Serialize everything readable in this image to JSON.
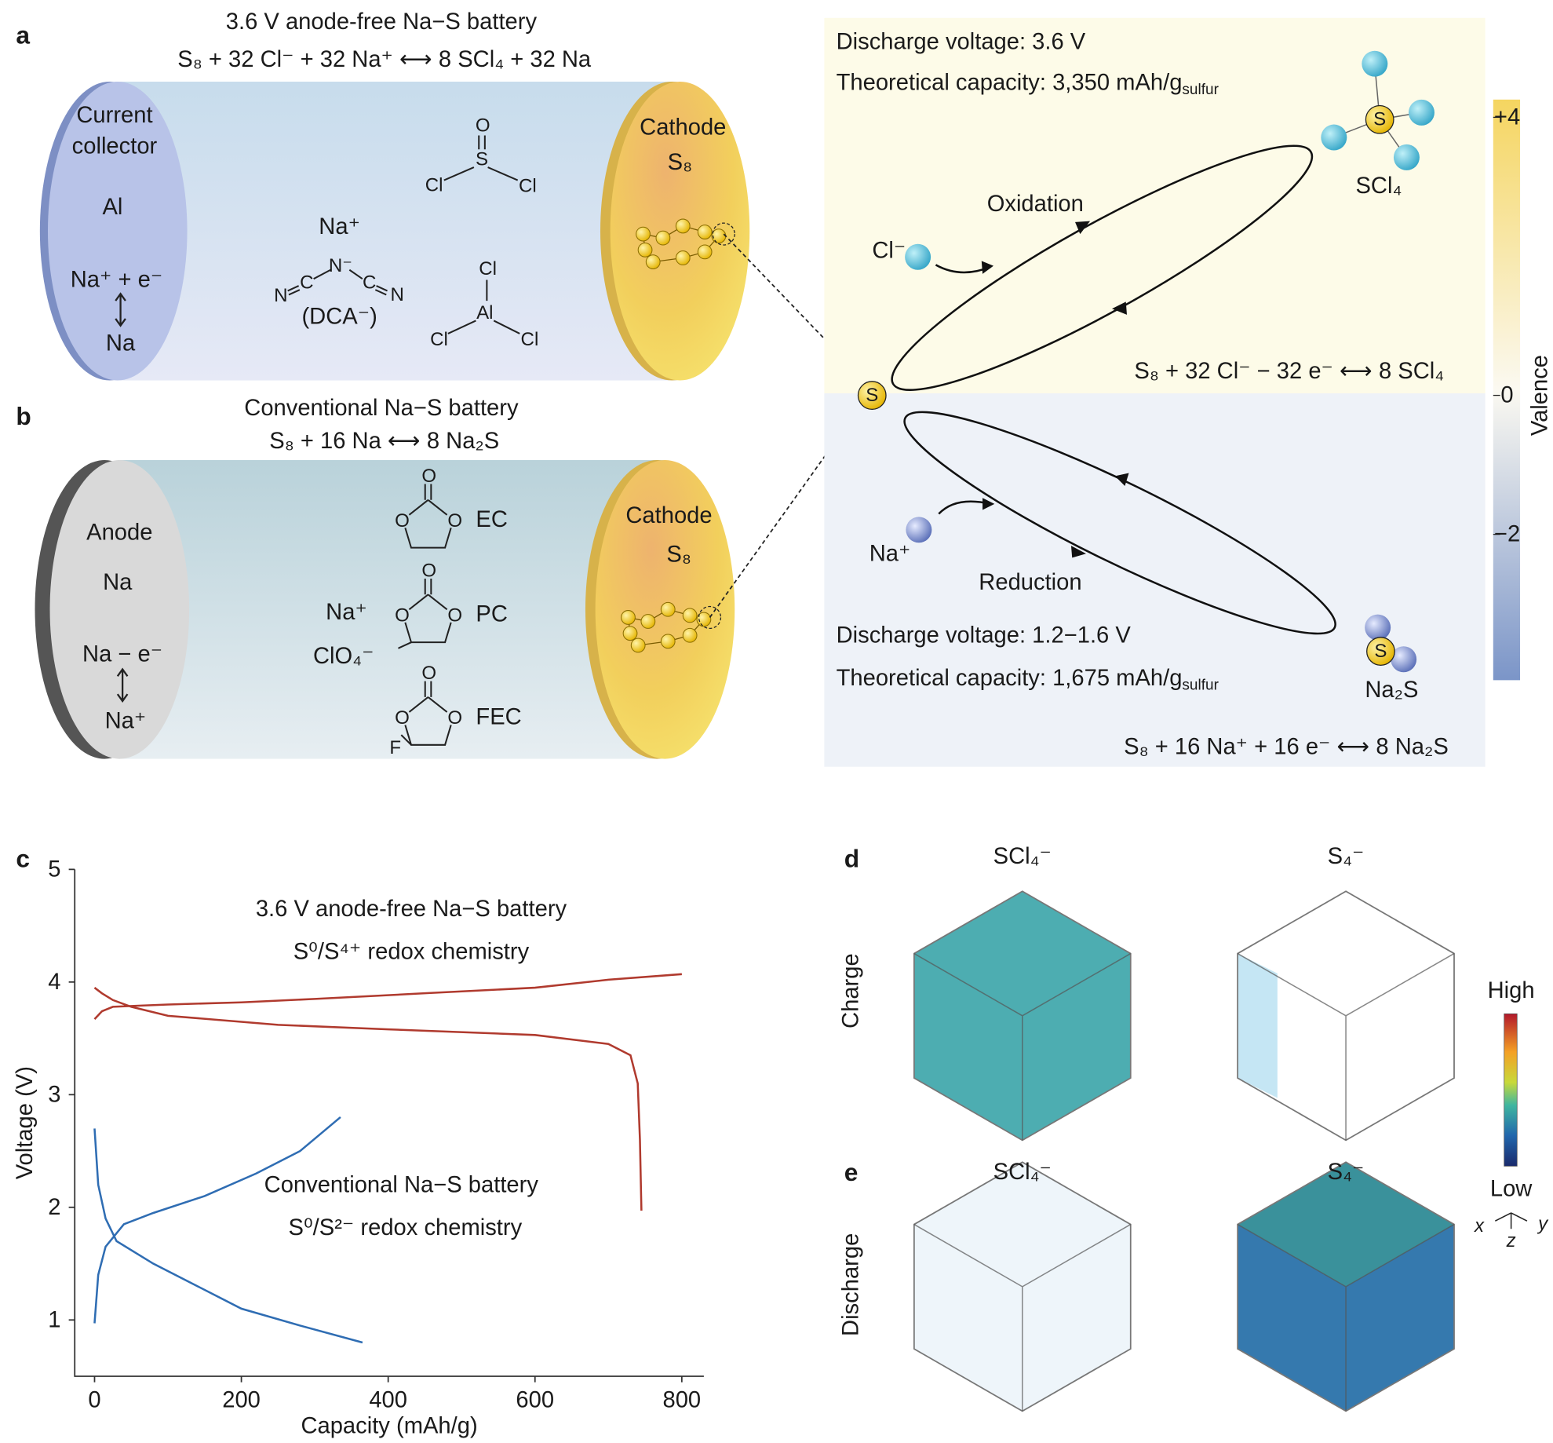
{
  "panel_labels": {
    "a": "a",
    "b": "b",
    "c": "c",
    "d": "d",
    "e": "e"
  },
  "panel_a": {
    "title": "3.6 V anode-free Na−S battery",
    "equation": "S₈ + 32 Cl⁻ + 32 Na⁺ ⟷ 8 SCl₄ + 32 Na",
    "collector": [
      "Current",
      "collector"
    ],
    "collector_material": "Al",
    "anode_reaction_top": "Na⁺ + e⁻",
    "anode_reaction_bottom": "Na",
    "cathode": "Cathode",
    "cathode_material": "S₈",
    "salt_cation": "Na⁺",
    "salt_anion": "(DCA⁻)",
    "socl2_atoms": [
      "O",
      "S",
      "Cl",
      "Cl"
    ],
    "dca_atoms": [
      "N",
      "C",
      "N⁻",
      "C",
      "N"
    ],
    "alcl3_atoms": [
      "Cl",
      "Al",
      "Cl",
      "Cl"
    ]
  },
  "panel_b": {
    "title": "Conventional Na−S battery",
    "equation": "S₈ + 16 Na ⟷ 8 Na₂S",
    "anode": "Anode",
    "anode_material": "Na",
    "anode_reaction_top": "Na − e⁻",
    "anode_reaction_bottom": "Na⁺",
    "cathode": "Cathode",
    "cathode_material": "S₈",
    "salt_cation": "Na⁺",
    "salt_anion": "ClO₄⁻",
    "solvents": [
      {
        "name": "EC",
        "atoms": [
          "O",
          "O",
          "O"
        ]
      },
      {
        "name": "PC",
        "atoms": [
          "O",
          "O",
          "O"
        ]
      },
      {
        "name": "FEC",
        "atoms": [
          "O",
          "O",
          "O",
          "F"
        ]
      }
    ]
  },
  "mechanism": {
    "oxidation": {
      "voltage": "Discharge voltage: 3.6 V",
      "capacity": "Theoretical capacity: 3,350 mAh/g",
      "capacity_sub": "sulfur",
      "product": "SCl₄",
      "product_atom": "S",
      "label": "Oxidation",
      "ion": "Cl⁻",
      "equation": "S₈ + 32 Cl⁻ − 32 e⁻ ⟷ 8 SCl₄"
    },
    "center": "S",
    "reduction": {
      "voltage": "Discharge voltage: 1.2−1.6 V",
      "capacity": "Theoretical capacity: 1,675 mAh/g",
      "capacity_sub": "sulfur",
      "product": "Na₂S",
      "product_atom": "S",
      "label": "Reduction",
      "ion": "Na⁺",
      "equation": "S₈ + 16 Na⁺ + 16 e⁻ ⟷ 8 Na₂S"
    },
    "valence": {
      "label": "Valence",
      "ticks": [
        {
          "value": 4,
          "label": "+4"
        },
        0,
        {
          "value": -2,
          "label": "−2"
        }
      ]
    }
  },
  "chart_data": {
    "type": "line",
    "xlabel": "Capacity (mAh/g)",
    "ylabel": "Voltage (V)",
    "xlim": [
      -27,
      830
    ],
    "ylim": [
      0.5,
      5
    ],
    "xticks": [
      0,
      200,
      400,
      600,
      800
    ],
    "yticks": [
      1,
      2,
      3,
      4,
      5
    ],
    "annotations": [
      "3.6 V anode-free Na−S battery",
      "S⁰/S⁴⁺ redox chemistry",
      "Conventional Na−S battery",
      "S⁰/S²⁻ redox chemistry"
    ],
    "series": [
      {
        "color": "#b03a2e",
        "x": [
          0,
          10,
          25,
          60,
          100,
          200,
          300,
          450,
          600,
          700,
          800
        ],
        "values": [
          3.67,
          3.74,
          3.78,
          3.79,
          3.8,
          3.82,
          3.85,
          3.9,
          3.95,
          4.02,
          4.07
        ]
      },
      {
        "color": "#b03a2e",
        "x": [
          0,
          10,
          25,
          50,
          100,
          250,
          400,
          600,
          700,
          730,
          740,
          743,
          745
        ],
        "values": [
          3.95,
          3.9,
          3.84,
          3.78,
          3.7,
          3.62,
          3.58,
          3.53,
          3.45,
          3.35,
          3.1,
          2.6,
          1.97
        ]
      },
      {
        "color": "#2f6db3",
        "x": [
          0,
          5,
          15,
          40,
          80,
          150,
          220,
          280,
          335
        ],
        "values": [
          0.97,
          1.4,
          1.65,
          1.85,
          1.95,
          2.1,
          2.3,
          2.5,
          2.8
        ]
      },
      {
        "color": "#2f6db3",
        "x": [
          0,
          5,
          15,
          30,
          80,
          140,
          200,
          280,
          365
        ],
        "values": [
          2.7,
          2.2,
          1.9,
          1.7,
          1.5,
          1.3,
          1.1,
          0.95,
          0.8
        ]
      }
    ]
  },
  "panel_de": {
    "columns_d": [
      "SCl₄⁻",
      "S₄⁻"
    ],
    "columns_e": [
      "SCl₄⁻",
      "S₄⁻"
    ],
    "row_d": "Charge",
    "row_e": "Discharge",
    "scale_high": "High",
    "scale_low": "Low",
    "axes": [
      "x",
      "y",
      "z"
    ]
  }
}
